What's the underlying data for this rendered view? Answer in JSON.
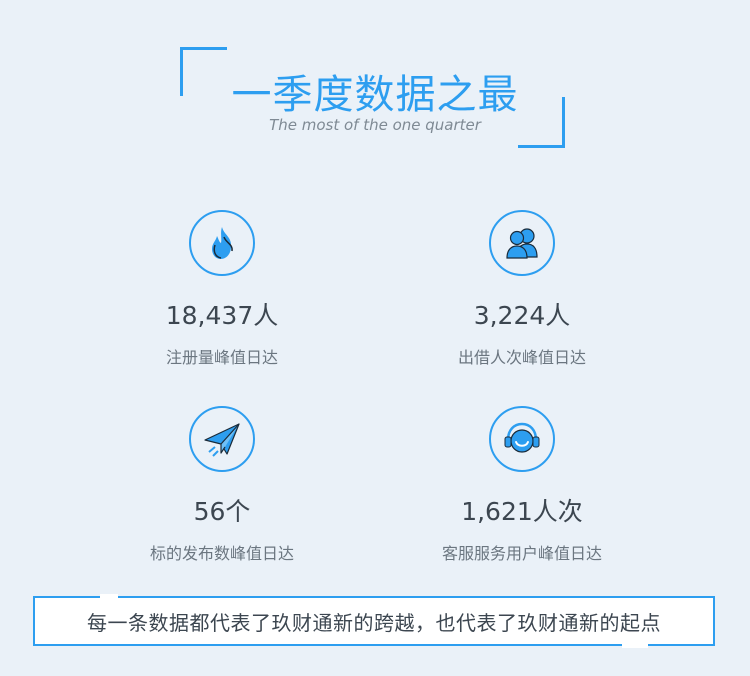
{
  "header": {
    "title": "一季度数据之最",
    "subtitle": "The most of the one quarter"
  },
  "stats": [
    {
      "value": "18,437人",
      "label": "注册量峰值日达",
      "icon": "flame-icon"
    },
    {
      "value": "3,224人",
      "label": "出借人次峰值日达",
      "icon": "users-icon"
    },
    {
      "value": "56个",
      "label": "标的发布数峰值日达",
      "icon": "paper-plane-icon"
    },
    {
      "value": "1,621人次",
      "label": "客服服务用户峰值日达",
      "icon": "headset-icon"
    }
  ],
  "footer": {
    "text": "每一条数据都代表了玖财通新的跨越，也代表了玖财通新的起点"
  },
  "colors": {
    "accent": "#2d9ef0",
    "background": "#eaf1f8",
    "text": "#3c4650"
  }
}
